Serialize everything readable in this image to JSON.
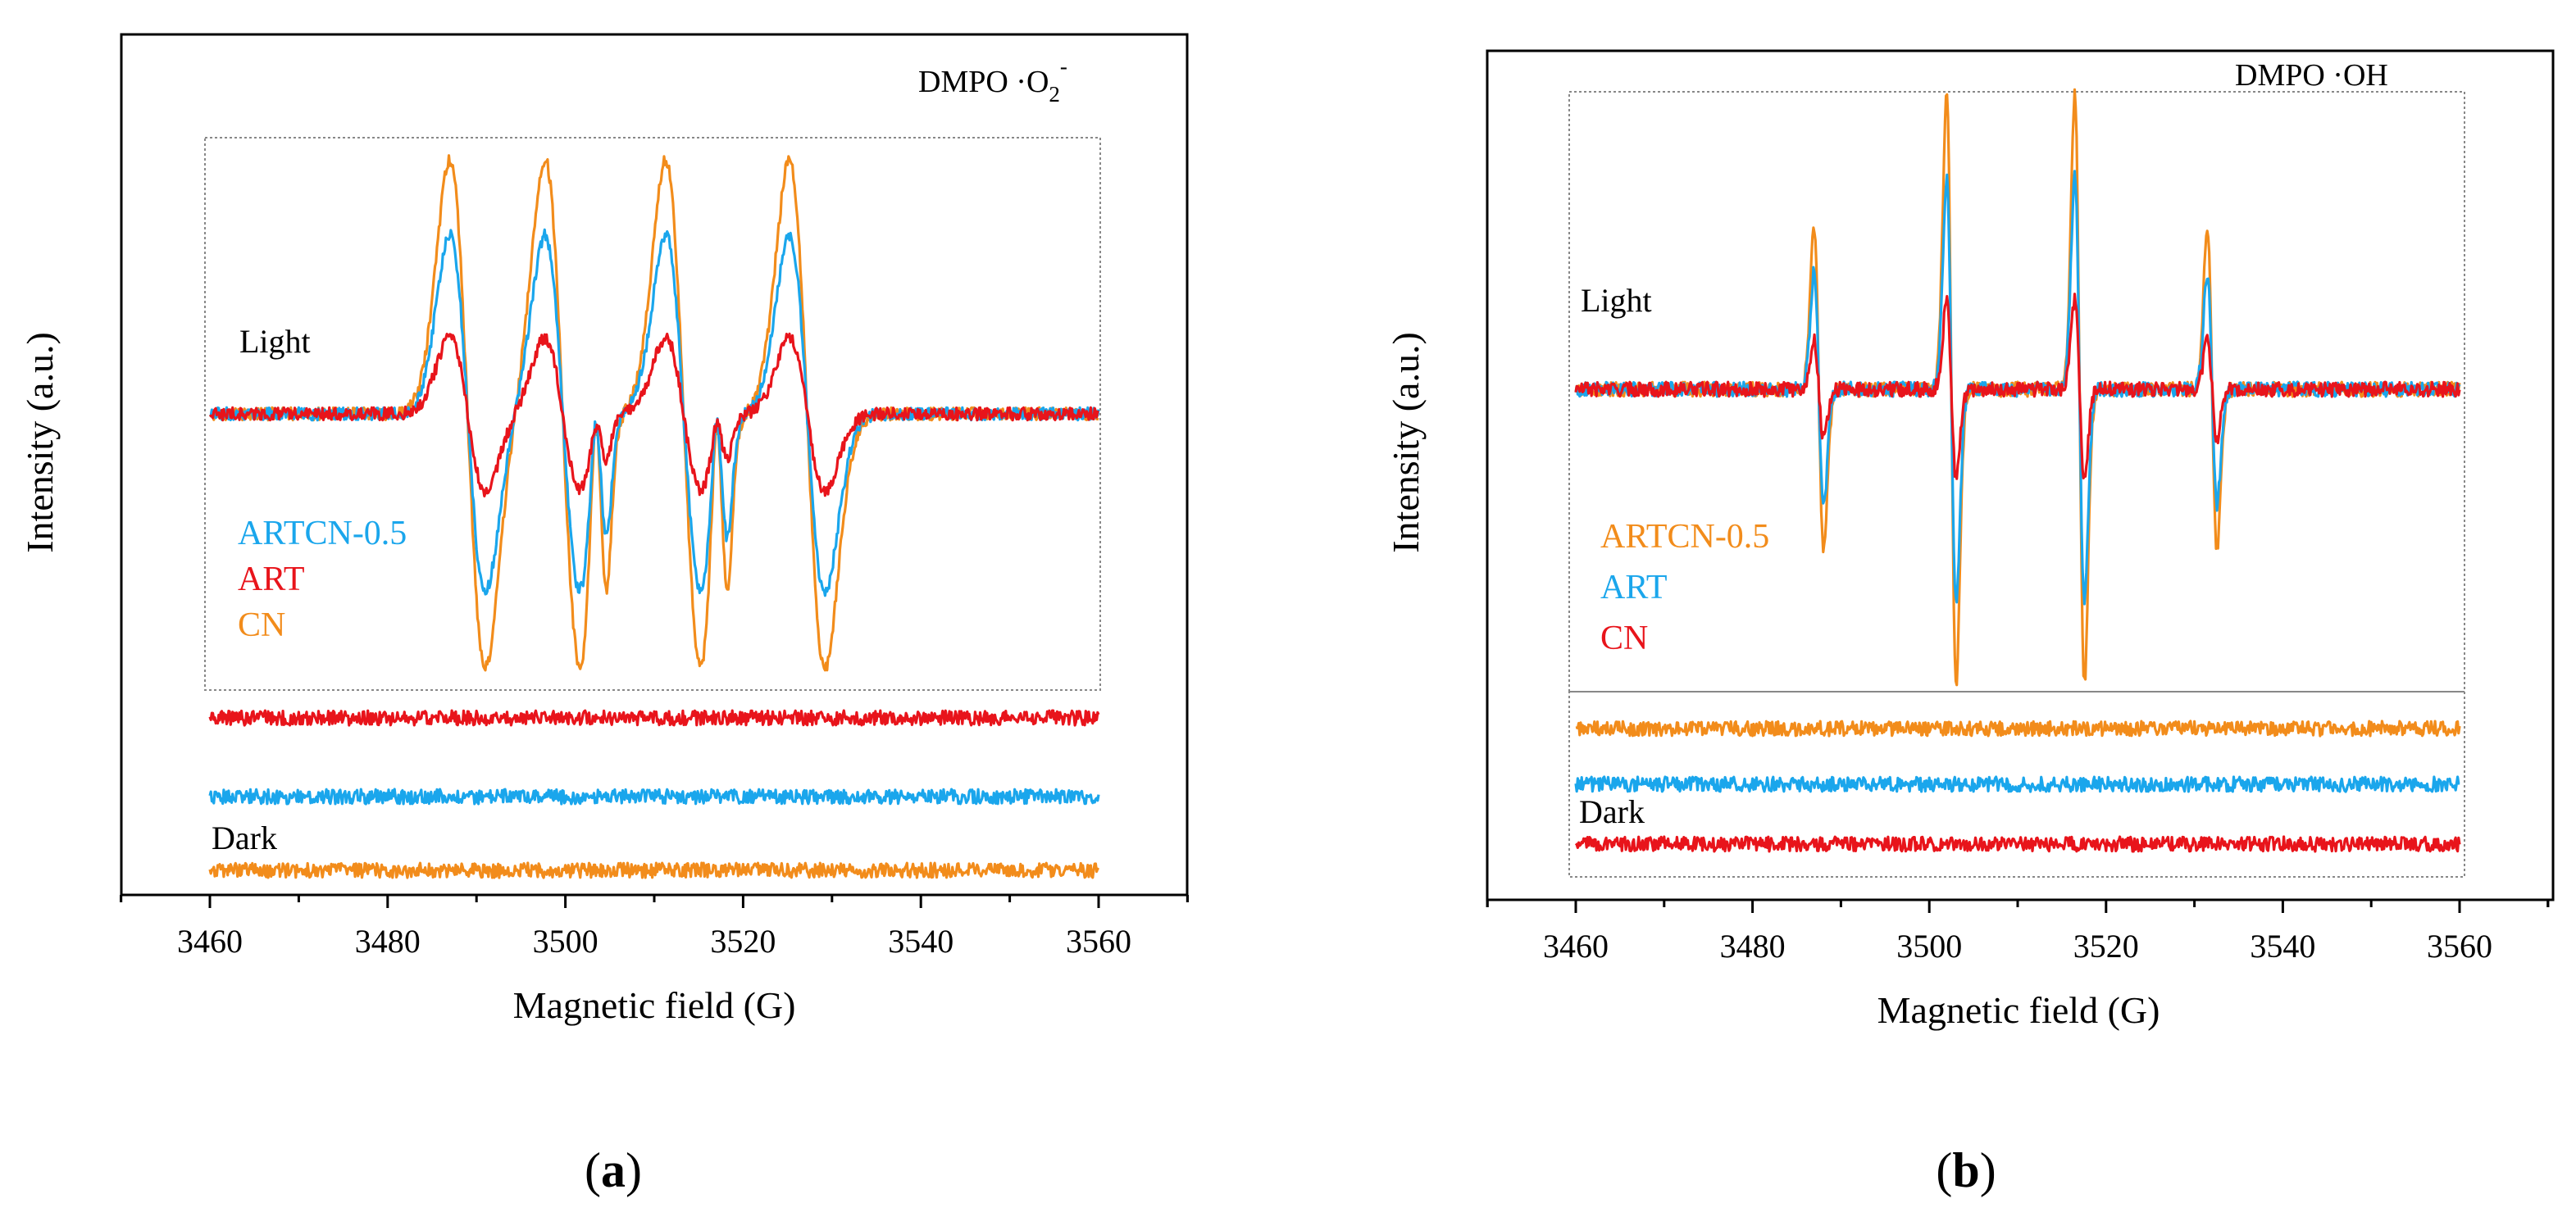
{
  "colors": {
    "orange": "#f28c1b",
    "blue": "#1aa6ec",
    "red": "#e8141b"
  },
  "chart_data": [
    {
      "panel_label": "(a)",
      "type": "line",
      "title": "DMPO ·O2⁻",
      "title_main": "DMPO ·O",
      "title_sub": "2",
      "title_sup": "-",
      "xlabel": "Magnetic field (G)",
      "ylabel": "Intensity (a.u.)",
      "xlim": [
        3450,
        3570
      ],
      "xticks": [
        3460,
        3480,
        3500,
        3520,
        3540,
        3560
      ],
      "grid": false,
      "legend_location": "left, inside inset",
      "legend": [
        {
          "label": "ARTCN-0.5",
          "color": "blue"
        },
        {
          "label": "ART",
          "color": "red"
        },
        {
          "label": "CN",
          "color": "orange"
        }
      ],
      "conditions": [
        "Light",
        "Dark"
      ],
      "light_lines": [
        3489,
        3499.7,
        3513.3,
        3527.2
      ],
      "light_minor_lines": [
        3504,
        3517.6
      ],
      "light_series": [
        {
          "name": "CN",
          "color": "orange",
          "amplitude": 1.0,
          "minor": 0.5
        },
        {
          "name": "ARTCN-0.5",
          "color": "blue",
          "amplitude": 0.7,
          "minor": 0.35
        },
        {
          "name": "ART",
          "color": "red",
          "amplitude": 0.3,
          "minor": 0.12
        }
      ],
      "dark_series": [
        {
          "name": "ART",
          "color": "red",
          "baseline_level": 0.78
        },
        {
          "name": "ARTCN-0.5",
          "color": "blue",
          "baseline_level": 0.52
        },
        {
          "name": "CN",
          "color": "orange",
          "baseline_level": 0.26
        }
      ],
      "x_range_data": [
        3460,
        3560
      ]
    },
    {
      "panel_label": "(b)",
      "type": "line",
      "title": "DMPO ·OH",
      "xlabel": "Magnetic field (G)",
      "ylabel": "Intensity (a.u.)",
      "xlim": [
        3450,
        3570
      ],
      "xticks": [
        3460,
        3480,
        3500,
        3520,
        3540,
        3560
      ],
      "grid": false,
      "legend_location": "left, inside inset",
      "legend": [
        {
          "label": "ARTCN-0.5",
          "color": "orange"
        },
        {
          "label": "ART",
          "color": "blue"
        },
        {
          "label": "CN",
          "color": "red"
        }
      ],
      "conditions": [
        "Light",
        "Dark"
      ],
      "light_lines": [
        3487.5,
        3502.5,
        3517,
        3532
      ],
      "line_ratios": [
        0.55,
        1.0,
        1.0,
        0.55
      ],
      "light_series": [
        {
          "name": "ARTCN-0.5",
          "color": "orange",
          "amplitude": 1.0
        },
        {
          "name": "ART",
          "color": "blue",
          "amplitude": 0.72
        },
        {
          "name": "CN",
          "color": "red",
          "amplitude": 0.3
        }
      ],
      "dark_series": [
        {
          "name": "ARTCN-0.5",
          "color": "orange",
          "baseline_level": 0.82
        },
        {
          "name": "ART",
          "color": "blue",
          "baseline_level": 0.6
        },
        {
          "name": "CN",
          "color": "red",
          "baseline_level": 0.34
        }
      ],
      "x_range_data": [
        3460,
        3560
      ]
    }
  ]
}
